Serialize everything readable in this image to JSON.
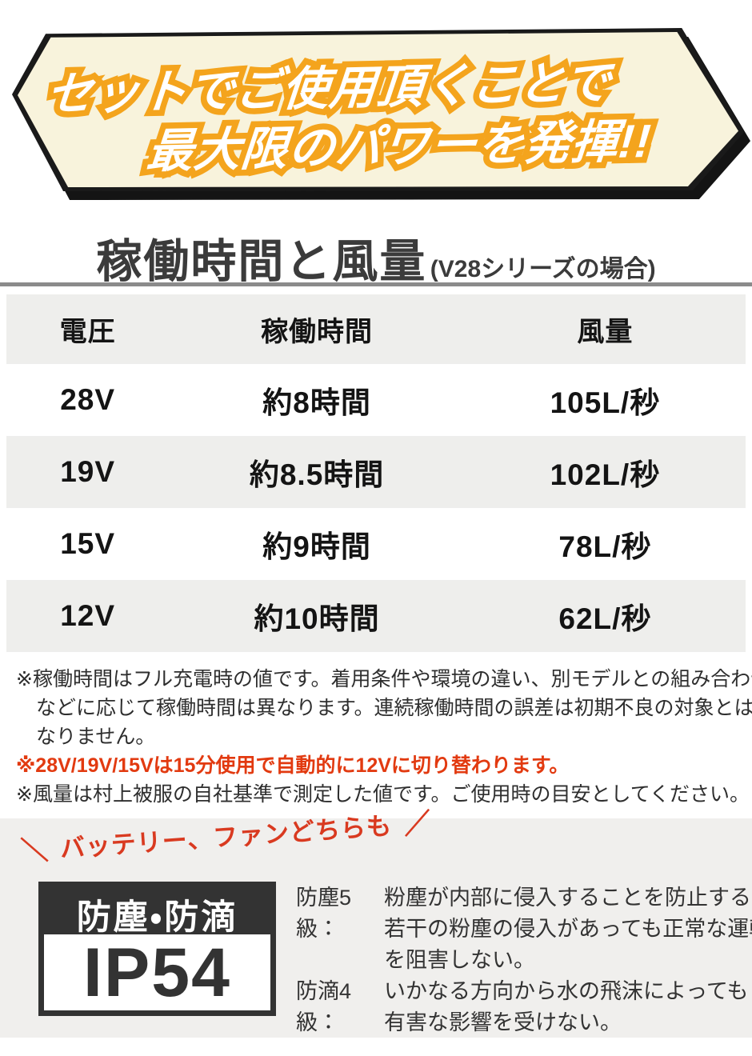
{
  "banner": {
    "line1": "セットでご使用頂くことで",
    "line2": "最大限のパワーを発揮!!",
    "bg_color": "#f8f3dc",
    "stroke_color": "#f4a41d",
    "border_color": "#1a1a1a"
  },
  "heading": {
    "title": "稼働時間と風量",
    "suffix": "(V28シリーズの場合)"
  },
  "table": {
    "headers": [
      "電圧",
      "稼働時間",
      "風量"
    ],
    "rows": [
      [
        "28V",
        "約8時間",
        "105L/秒"
      ],
      [
        "19V",
        "約8.5時間",
        "102L/秒"
      ],
      [
        "15V",
        "約9時間",
        "78L/秒"
      ],
      [
        "12V",
        "約10時間",
        "62L/秒"
      ]
    ],
    "stripe_color": "#eeeeec"
  },
  "notes": {
    "note1_line1": "※稼働時間はフル充電時の値です。着用条件や環境の違い、別モデルとの組み合わせ",
    "note1_line2": "などに応じて稼働時間は異なります。連続稼働時間の誤差は初期不良の対象とは",
    "note1_line3": "なりません。",
    "note2": "※28V/19V/15Vは15分使用で自動的に12Vに切り替わります。",
    "note2_color": "#e23a10",
    "note3": "※風量は村上被服の自社基準で測定した値です。ご使用時の目安としてください。"
  },
  "ip_section": {
    "callout_left_slash": "＼",
    "callout_text": "バッテリー、ファンどちらも",
    "callout_right_slash": "／",
    "callout_color": "#d93a20",
    "badge_title": "防塵・防滴",
    "badge_rating": "IP54",
    "items": [
      {
        "term": "防塵5級：",
        "lines": [
          "粉塵が内部に侵入することを防止する。",
          "若干の粉塵の侵入があっても正常な運転",
          "を阻害しない。"
        ]
      },
      {
        "term": "防滴4級：",
        "lines": [
          "いかなる方向から水の飛沫によっても",
          "有害な影響を受けない。"
        ]
      }
    ],
    "band_color": "#f0efed"
  }
}
